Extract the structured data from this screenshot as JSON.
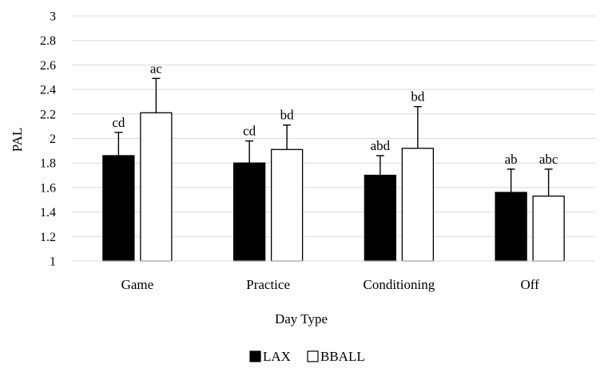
{
  "chart_data": {
    "type": "bar",
    "title": "",
    "xlabel": "Day Type",
    "ylabel": "PAL",
    "ylim": [
      1,
      3
    ],
    "yticks": [
      "1",
      "1.2",
      "1.4",
      "1.6",
      "1.8",
      "2",
      "2.2",
      "2.4",
      "2.6",
      "2.8",
      "3"
    ],
    "categories": [
      "Game",
      "Practice",
      "Conditioning",
      "Off"
    ],
    "grid": true,
    "legend_position": "bottom",
    "series": [
      {
        "name": "LAX",
        "color": "#000000",
        "values": [
          1.86,
          1.8,
          1.7,
          1.56
        ],
        "error": [
          0.19,
          0.18,
          0.16,
          0.19
        ],
        "labels": [
          "cd",
          "cd",
          "abd",
          "ab"
        ]
      },
      {
        "name": "BBALL",
        "color": "#ffffff",
        "values": [
          2.21,
          1.91,
          1.92,
          1.53
        ],
        "error": [
          0.28,
          0.2,
          0.34,
          0.22
        ],
        "labels": [
          "ac",
          "bd",
          "bd",
          "abc"
        ]
      }
    ]
  }
}
